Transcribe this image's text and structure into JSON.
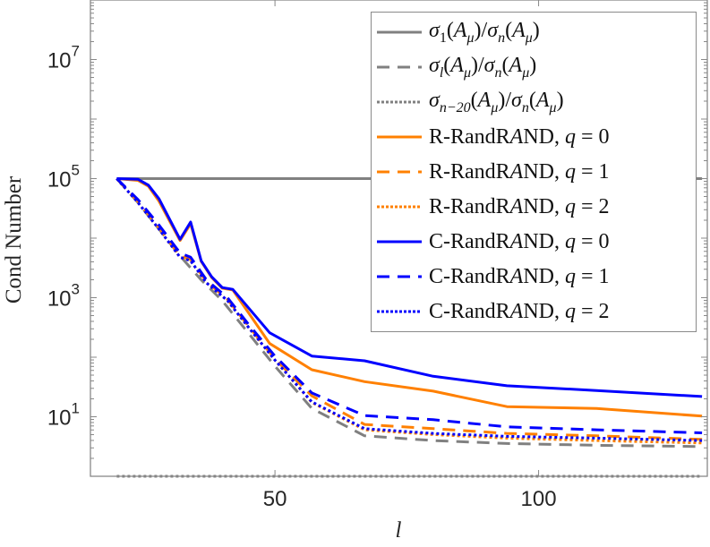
{
  "chart_data": {
    "type": "line",
    "title": "",
    "xlabel": "l",
    "ylabel": "Cond Number",
    "xlim": [
      15,
      132
    ],
    "ylim": [
      1,
      100000000
    ],
    "yscale": "log",
    "xticks": [
      50,
      100
    ],
    "xtick_labels": [
      "50",
      "100"
    ],
    "yticks": [
      10,
      1000,
      100000,
      10000000
    ],
    "ytick_labels": [
      {
        "base": "10",
        "exp": "1"
      },
      {
        "base": "10",
        "exp": "3"
      },
      {
        "base": "10",
        "exp": "5"
      },
      {
        "base": "10",
        "exp": "7"
      }
    ],
    "legend_placement": "top-right",
    "grid": false,
    "series": [
      {
        "name": "σ_{1}(A_{μ})/σ_{n}(A_{μ})",
        "color": "#808080",
        "dash": "solid",
        "x": [
          20,
          131
        ],
        "log10y": [
          5,
          5
        ]
      },
      {
        "name": "σ_{l}(A_{μ})/σ_{n}(A_{μ})",
        "color": "#808080",
        "dash": "dashed",
        "x": [
          20,
          24,
          28,
          32,
          36,
          40,
          45,
          50,
          57,
          67,
          80,
          94,
          111,
          131
        ],
        "log10y": [
          5,
          4.6,
          4.15,
          3.7,
          3.3,
          2.95,
          2.4,
          1.85,
          1.14,
          0.68,
          0.6,
          0.55,
          0.52,
          0.5
        ]
      },
      {
        "name": "σ_{n−20}(A_{μ})/σ_{n}(A_{μ})",
        "color": "#808080",
        "dash": "dotted",
        "x": [
          20,
          131
        ],
        "log10y": [
          0,
          0
        ]
      },
      {
        "name": "R-RandRAND, q = 0",
        "color": "#ff8000",
        "dash": "solid",
        "x": [
          20,
          24,
          26,
          28,
          32,
          34,
          36,
          38,
          40,
          42,
          49,
          57,
          67,
          80,
          94,
          111,
          131
        ],
        "log10y": [
          5,
          4.97,
          4.87,
          4.62,
          3.96,
          4.24,
          3.61,
          3.34,
          3.16,
          3.13,
          2.23,
          1.79,
          1.59,
          1.43,
          1.17,
          1.14,
          1.01
        ]
      },
      {
        "name": "R-RandRAND, q = 1",
        "color": "#ff8000",
        "dash": "dashed",
        "x": [
          20,
          24,
          28,
          32,
          34,
          37,
          41,
          45,
          50,
          57,
          67,
          80,
          94,
          111,
          131
        ],
        "log10y": [
          5,
          4.62,
          4.18,
          3.7,
          3.64,
          3.27,
          2.97,
          2.52,
          1.97,
          1.35,
          0.87,
          0.8,
          0.72,
          0.68,
          0.62
        ]
      },
      {
        "name": "R-RandRAND, q = 2",
        "color": "#ff8000",
        "dash": "dotted",
        "x": [
          20,
          24,
          28,
          32,
          34,
          37,
          41,
          45,
          50,
          57,
          67,
          80,
          94,
          111,
          131
        ],
        "log10y": [
          5,
          4.6,
          4.15,
          3.68,
          3.62,
          3.25,
          2.95,
          2.5,
          1.95,
          1.24,
          0.78,
          0.7,
          0.64,
          0.6,
          0.56
        ]
      },
      {
        "name": "C-RandRAND, q = 0",
        "color": "#0000ff",
        "dash": "solid",
        "x": [
          20,
          24,
          26,
          28,
          32,
          34,
          36,
          38,
          40,
          42,
          49,
          57,
          67,
          80,
          94,
          111,
          131
        ],
        "log10y": [
          5,
          4.99,
          4.89,
          4.66,
          3.98,
          4.27,
          3.62,
          3.35,
          3.17,
          3.14,
          2.41,
          2.02,
          1.94,
          1.68,
          1.52,
          1.44,
          1.34
        ]
      },
      {
        "name": "C-RandRAND, q = 1",
        "color": "#0000ff",
        "dash": "dashed",
        "x": [
          20,
          24,
          28,
          32,
          34,
          37,
          41,
          45,
          50,
          57,
          67,
          80,
          94,
          111,
          131
        ],
        "log10y": [
          5,
          4.65,
          4.22,
          3.75,
          3.68,
          3.3,
          3.0,
          2.55,
          2.02,
          1.4,
          1.02,
          0.95,
          0.83,
          0.78,
          0.73
        ]
      },
      {
        "name": "C-RandRAND, q = 2",
        "color": "#0000ff",
        "dash": "dotted",
        "x": [
          20,
          24,
          28,
          32,
          34,
          37,
          41,
          45,
          50,
          57,
          67,
          80,
          94,
          111,
          131
        ],
        "log10y": [
          5,
          4.6,
          4.15,
          3.68,
          3.62,
          3.25,
          2.95,
          2.5,
          1.95,
          1.25,
          0.8,
          0.72,
          0.67,
          0.64,
          0.6
        ]
      }
    ]
  }
}
